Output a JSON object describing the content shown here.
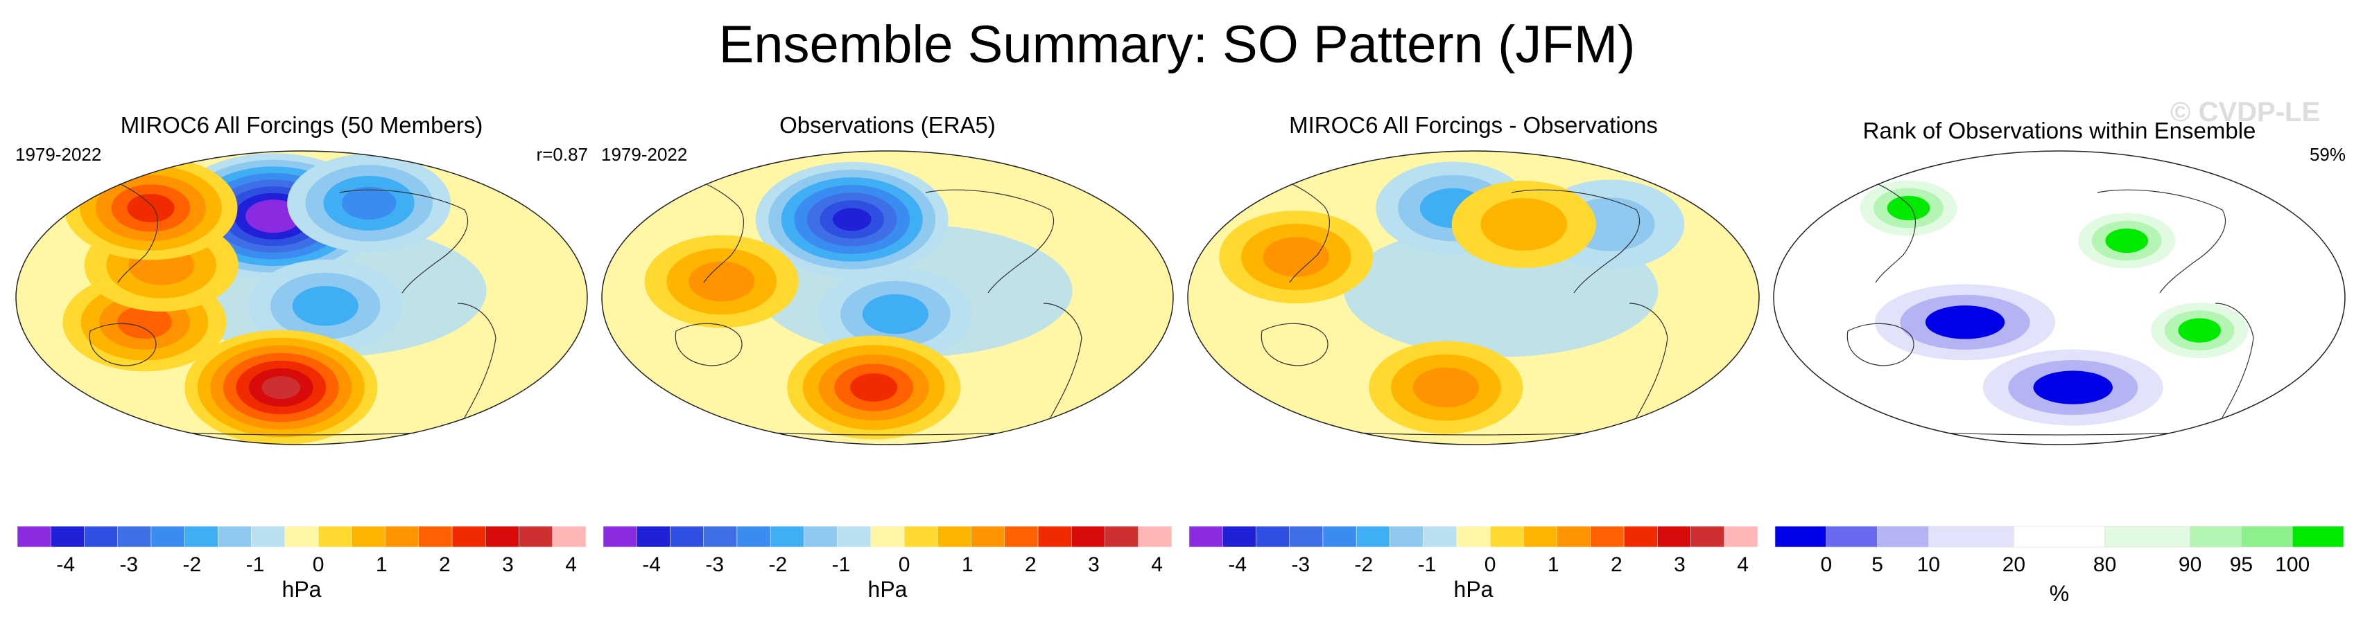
{
  "figure": {
    "title": "Ensemble Summary: SO Pattern (JFM)",
    "copyright": "© CVDP-LE"
  },
  "chart_data": [
    {
      "type": "heatmap",
      "title": "MIROC6 All Forcings (50 Members)",
      "period": "1979-2022",
      "stat": "r=0.87",
      "projection": "Robinson (Pacific-centered)",
      "colorbar": {
        "label": "hPa",
        "ticks": [
          "-4",
          "-3",
          "-2",
          "-1",
          "0",
          "1",
          "2",
          "3",
          "4"
        ],
        "bounds": [
          -4.5,
          4.5
        ],
        "colors": [
          "#8a2be2",
          "#2020d8",
          "#2f4fe0",
          "#3f6fe6",
          "#3a8cf0",
          "#40aef5",
          "#8fc9f0",
          "#b8e0f0",
          "#fff6a6",
          "#ffd830",
          "#ffb400",
          "#ff9400",
          "#ff6000",
          "#f22a00",
          "#d80a0a",
          "#cc3030",
          "#ffb6b6"
        ]
      },
      "features": [
        {
          "name": "North Pacific low",
          "value": -4.5,
          "lon": 190,
          "lat": 50
        },
        {
          "name": "Canada low",
          "value": -2.0,
          "lon": 260,
          "lat": 58
        },
        {
          "name": "Tropical Pacific east low",
          "value": -1.5,
          "lon": 225,
          "lat": -5
        },
        {
          "name": "Maritime Continent high",
          "value": 2.0,
          "lon": 110,
          "lat": -15
        },
        {
          "name": "Asia high",
          "value": 1.5,
          "lon": 120,
          "lat": 20
        },
        {
          "name": "Southern Ocean high",
          "value": 3.5,
          "lon": 195,
          "lat": -55
        },
        {
          "name": "Siberia high",
          "value": 2.5,
          "lon": 100,
          "lat": 55
        }
      ]
    },
    {
      "type": "heatmap",
      "title": "Observations (ERA5)",
      "period": "1979-2022",
      "projection": "Robinson (Pacific-centered)",
      "colorbar": {
        "label": "hPa",
        "ticks": [
          "-4",
          "-3",
          "-2",
          "-1",
          "0",
          "1",
          "2",
          "3",
          "4"
        ],
        "bounds": [
          -4.5,
          4.5
        ],
        "colors": [
          "#8a2be2",
          "#2020d8",
          "#2f4fe0",
          "#3f6fe6",
          "#3a8cf0",
          "#40aef5",
          "#8fc9f0",
          "#b8e0f0",
          "#fff6a6",
          "#ffd830",
          "#ffb400",
          "#ff9400",
          "#ff6000",
          "#f22a00",
          "#d80a0a",
          "#cc3030",
          "#ffb6b6"
        ]
      },
      "features": [
        {
          "name": "North Pacific low",
          "value": -3.5,
          "lon": 185,
          "lat": 48
        },
        {
          "name": "Tropical Pacific east low",
          "value": -1.5,
          "lon": 215,
          "lat": -10
        },
        {
          "name": "Asia high",
          "value": 1.5,
          "lon": 105,
          "lat": 10
        },
        {
          "name": "Southern Ocean high",
          "value": 2.5,
          "lon": 200,
          "lat": -55
        }
      ]
    },
    {
      "type": "heatmap",
      "title": "MIROC6 All Forcings - Observations",
      "projection": "Robinson (Pacific-centered)",
      "colorbar": {
        "label": "hPa",
        "ticks": [
          "-4",
          "-3",
          "-2",
          "-1",
          "0",
          "1",
          "2",
          "3",
          "4"
        ],
        "bounds": [
          -4.5,
          4.5
        ],
        "colors": [
          "#8a2be2",
          "#2020d8",
          "#2f4fe0",
          "#3f6fe6",
          "#3a8cf0",
          "#40aef5",
          "#8fc9f0",
          "#b8e0f0",
          "#fff6a6",
          "#ffd830",
          "#ffb400",
          "#ff9400",
          "#ff6000",
          "#f22a00",
          "#d80a0a",
          "#cc3030",
          "#ffb6b6"
        ]
      },
      "features": [
        {
          "name": "North Pacific low",
          "value": -1.5,
          "lon": 195,
          "lat": 55
        },
        {
          "name": "North Atlantic low",
          "value": -1.2,
          "lon": 305,
          "lat": 45
        },
        {
          "name": "North America high",
          "value": 1.0,
          "lon": 245,
          "lat": 45
        },
        {
          "name": "Asia high",
          "value": 1.5,
          "lon": 95,
          "lat": 25
        },
        {
          "name": "Southern Ocean high",
          "value": 1.5,
          "lon": 190,
          "lat": -55
        }
      ]
    },
    {
      "type": "heatmap",
      "title": "Rank of Observations within Ensemble",
      "stat": "59%",
      "projection": "Robinson (Pacific-centered)",
      "colorbar": {
        "label": "%",
        "boundaries": [
          "0",
          "5",
          "10",
          "20",
          "80",
          "90",
          "95",
          "100"
        ],
        "colors": [
          "#0000e8",
          "#6a6af0",
          "#b4b4f5",
          "#e2e2fa",
          "#ffffff",
          "#e2fae2",
          "#b4f5b4",
          "#8cf08c",
          "#00ea00"
        ]
      },
      "features": [
        {
          "name": "Western Pacific / Australia low rank",
          "value": 0,
          "lon": 150,
          "lat": -15
        },
        {
          "name": "Southern Ocean low rank",
          "value": 5,
          "lon": 220,
          "lat": -55
        },
        {
          "name": "North America high rank",
          "value": 100,
          "lon": 255,
          "lat": 35
        },
        {
          "name": "Siberia high rank",
          "value": 100,
          "lon": 100,
          "lat": 55
        },
        {
          "name": "South America high rank",
          "value": 100,
          "lon": 300,
          "lat": -20
        }
      ]
    }
  ]
}
